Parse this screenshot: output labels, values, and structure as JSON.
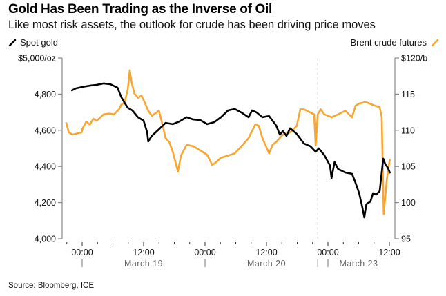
{
  "title": "Gold Has Been Trading as the Inverse of Oil",
  "subtitle": "Like most risk assets, the outlook for crude has been driving price moves",
  "source": "Source: Bloomberg, ICE",
  "colors": {
    "gold": "#000000",
    "oil": "#f9a531",
    "axis": "#888888",
    "break": "#cccccc"
  },
  "chart_data": {
    "type": "line",
    "title": "Gold Has Been Trading as the Inverse of Oil",
    "subtitle": "Like most risk assets, the outlook for crude has been driving price moves",
    "x_unit": "trading hours since March 19 00:00 (weekend of March 21-22 removed; break near hour 46)",
    "xlim": [
      -3,
      61
    ],
    "x_ticks": [
      {
        "t": 0,
        "label": "00:00"
      },
      {
        "t": 12,
        "label": "12:00"
      },
      {
        "t": 24,
        "label": "00:00"
      },
      {
        "t": 36,
        "label": "12:00"
      },
      {
        "t": 48,
        "label": "00:00"
      },
      {
        "t": 60,
        "label": "12:00"
      }
    ],
    "date_labels": [
      {
        "t": 12,
        "label": "March 19"
      },
      {
        "t": 36,
        "label": "March 20"
      },
      {
        "t": 54,
        "label": "March 23"
      }
    ],
    "date_separators": [
      0,
      24,
      46,
      48
    ],
    "minor_tick_step": 3,
    "weekend_break_t": 46,
    "left_axis": {
      "label": "$5,000/oz",
      "ylim": [
        4000,
        5000
      ],
      "ticks": [
        {
          "v": 5000,
          "label": "$5,000/oz"
        },
        {
          "v": 4800,
          "label": "4,800"
        },
        {
          "v": 4600,
          "label": "4,600"
        },
        {
          "v": 4400,
          "label": "4,400"
        },
        {
          "v": 4200,
          "label": "4,200"
        },
        {
          "v": 4000,
          "label": "4,000"
        }
      ]
    },
    "right_axis": {
      "label": "$120/b",
      "ylim": [
        95,
        120
      ],
      "ticks": [
        {
          "v": 120,
          "label": "$120/b"
        },
        {
          "v": 115,
          "label": "115"
        },
        {
          "v": 110,
          "label": "110"
        },
        {
          "v": 105,
          "label": "105"
        },
        {
          "v": 100,
          "label": "100"
        },
        {
          "v": 95,
          "label": "95"
        }
      ]
    },
    "series": [
      {
        "name": "Spot gold",
        "axis": "left",
        "legend_position": "top-left",
        "points": [
          [
            -2.0,
            4821
          ],
          [
            -1.2,
            4832
          ],
          [
            0.1,
            4840
          ],
          [
            1.5,
            4847
          ],
          [
            2.8,
            4851
          ],
          [
            4.2,
            4859
          ],
          [
            5.5,
            4855
          ],
          [
            6.9,
            4836
          ],
          [
            7.6,
            4786
          ],
          [
            8.2,
            4756
          ],
          [
            8.9,
            4725
          ],
          [
            9.8,
            4710
          ],
          [
            10.9,
            4672
          ],
          [
            12.0,
            4653
          ],
          [
            12.7,
            4588
          ],
          [
            12.9,
            4538
          ],
          [
            13.6,
            4569
          ],
          [
            14.9,
            4603
          ],
          [
            16.3,
            4641
          ],
          [
            17.7,
            4634
          ],
          [
            19.0,
            4649
          ],
          [
            20.4,
            4672
          ],
          [
            21.7,
            4660
          ],
          [
            23.1,
            4656
          ],
          [
            24.4,
            4634
          ],
          [
            25.8,
            4645
          ],
          [
            27.1,
            4672
          ],
          [
            28.5,
            4710
          ],
          [
            29.8,
            4718
          ],
          [
            31.1,
            4698
          ],
          [
            32.5,
            4672
          ],
          [
            33.2,
            4710
          ],
          [
            34.1,
            4698
          ],
          [
            35.2,
            4672
          ],
          [
            36.5,
            4679
          ],
          [
            37.9,
            4626
          ],
          [
            38.6,
            4576
          ],
          [
            39.2,
            4595
          ],
          [
            39.9,
            4569
          ],
          [
            40.6,
            4611
          ],
          [
            41.9,
            4580
          ],
          [
            43.3,
            4527
          ],
          [
            44.6,
            4511
          ],
          [
            45.6,
            4481
          ],
          [
            46.2,
            4500
          ],
          [
            47.3,
            4462
          ],
          [
            48.4,
            4405
          ],
          [
            48.7,
            4336
          ],
          [
            49.3,
            4424
          ],
          [
            50.0,
            4385
          ],
          [
            51.4,
            4366
          ],
          [
            52.7,
            4359
          ],
          [
            53.4,
            4309
          ],
          [
            54.1,
            4252
          ],
          [
            54.7,
            4176
          ],
          [
            55.1,
            4118
          ],
          [
            55.5,
            4191
          ],
          [
            56.3,
            4206
          ],
          [
            56.8,
            4252
          ],
          [
            57.4,
            4244
          ],
          [
            58.1,
            4263
          ],
          [
            58.8,
            4443
          ],
          [
            59.2,
            4412
          ],
          [
            59.7,
            4393
          ],
          [
            60.1,
            4366
          ]
        ]
      },
      {
        "name": "Brent crude futures",
        "axis": "right",
        "legend_position": "top-right",
        "points": [
          [
            -3.1,
            111.0
          ],
          [
            -2.6,
            109.7
          ],
          [
            -1.9,
            109.4
          ],
          [
            -0.1,
            109.7
          ],
          [
            0.1,
            110.3
          ],
          [
            0.8,
            111.2
          ],
          [
            1.5,
            110.8
          ],
          [
            2.2,
            111.6
          ],
          [
            2.8,
            111.3
          ],
          [
            4.2,
            112.2
          ],
          [
            5.3,
            112.3
          ],
          [
            6.2,
            112.2
          ],
          [
            7.2,
            112.9
          ],
          [
            7.6,
            113.5
          ],
          [
            8.3,
            113.9
          ],
          [
            8.9,
            115.6
          ],
          [
            9.3,
            118.3
          ],
          [
            9.6,
            116.8
          ],
          [
            10.2,
            115.1
          ],
          [
            10.9,
            114.5
          ],
          [
            11.6,
            114.8
          ],
          [
            12.3,
            113.7
          ],
          [
            12.9,
            112.7
          ],
          [
            13.6,
            112.0
          ],
          [
            15.0,
            112.7
          ],
          [
            15.6,
            111.0
          ],
          [
            16.3,
            108.9
          ],
          [
            17.0,
            108.4
          ],
          [
            17.7,
            107.0
          ],
          [
            18.7,
            104.3
          ],
          [
            19.3,
            106.5
          ],
          [
            20.4,
            108.0
          ],
          [
            21.7,
            107.8
          ],
          [
            23.1,
            107.2
          ],
          [
            24.4,
            106.6
          ],
          [
            25.4,
            105.2
          ],
          [
            26.0,
            105.5
          ],
          [
            27.1,
            106.2
          ],
          [
            28.5,
            106.5
          ],
          [
            29.8,
            106.8
          ],
          [
            31.1,
            107.8
          ],
          [
            32.5,
            108.9
          ],
          [
            33.8,
            110.8
          ],
          [
            34.5,
            110.6
          ],
          [
            35.2,
            108.9
          ],
          [
            35.9,
            107.8
          ],
          [
            36.5,
            106.8
          ],
          [
            37.2,
            108.0
          ],
          [
            37.9,
            108.4
          ],
          [
            39.2,
            109.4
          ],
          [
            40.6,
            109.7
          ],
          [
            41.9,
            110.6
          ],
          [
            42.6,
            112.9
          ],
          [
            43.3,
            112.9
          ],
          [
            43.9,
            112.7
          ],
          [
            45.3,
            112.2
          ],
          [
            45.6,
            107.9
          ],
          [
            46.0,
            112.2
          ],
          [
            46.6,
            112.9
          ],
          [
            47.3,
            112.2
          ],
          [
            48.7,
            111.8
          ],
          [
            50.0,
            112.2
          ],
          [
            51.4,
            112.7
          ],
          [
            52.7,
            111.8
          ],
          [
            53.4,
            113.4
          ],
          [
            54.1,
            113.7
          ],
          [
            55.4,
            113.9
          ],
          [
            56.8,
            113.5
          ],
          [
            58.1,
            113.2
          ],
          [
            58.5,
            111.8
          ],
          [
            58.9,
            98.4
          ],
          [
            59.5,
            103.2
          ],
          [
            59.9,
            105.2
          ],
          [
            60.1,
            105.9
          ]
        ]
      }
    ]
  }
}
